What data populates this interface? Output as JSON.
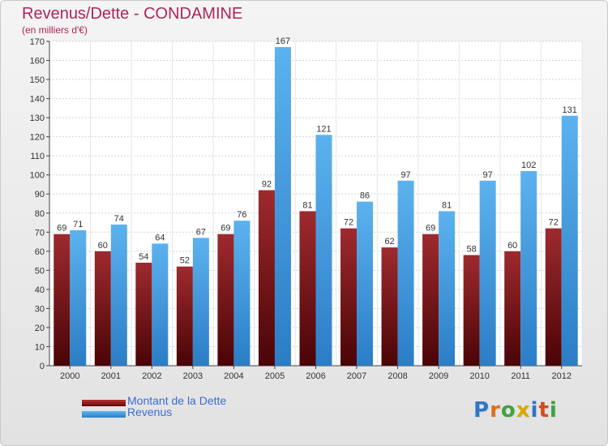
{
  "header": {
    "title": "Revenus/Dette - CONDAMINE",
    "subtitle": "(en milliers d'€)"
  },
  "chart_data": {
    "type": "bar",
    "categories": [
      "2000",
      "2001",
      "2002",
      "2003",
      "2004",
      "2005",
      "2006",
      "2007",
      "2008",
      "2009",
      "2010",
      "2011",
      "2012"
    ],
    "series": [
      {
        "name": "Montant de la Dette",
        "values": [
          69,
          60,
          54,
          52,
          69,
          92,
          81,
          72,
          62,
          69,
          58,
          60,
          72
        ],
        "color": "#7a1418"
      },
      {
        "name": "Revenus",
        "values": [
          71,
          74,
          64,
          67,
          76,
          167,
          121,
          86,
          97,
          81,
          97,
          102,
          131
        ],
        "color": "#3c9ae0"
      }
    ],
    "ylim": [
      0,
      170
    ],
    "yticks": [
      0,
      10,
      20,
      30,
      40,
      50,
      60,
      70,
      80,
      90,
      100,
      110,
      120,
      130,
      140,
      150,
      160,
      170
    ],
    "grid": true,
    "legend_position": "bottom-left"
  },
  "logo": {
    "text": "Proxiti",
    "letter_colors": [
      "#2f76c6",
      "#e0701a",
      "#3fa33f",
      "#d8a800",
      "#2f76c6",
      "#d94a1e",
      "#3fa33f"
    ]
  }
}
